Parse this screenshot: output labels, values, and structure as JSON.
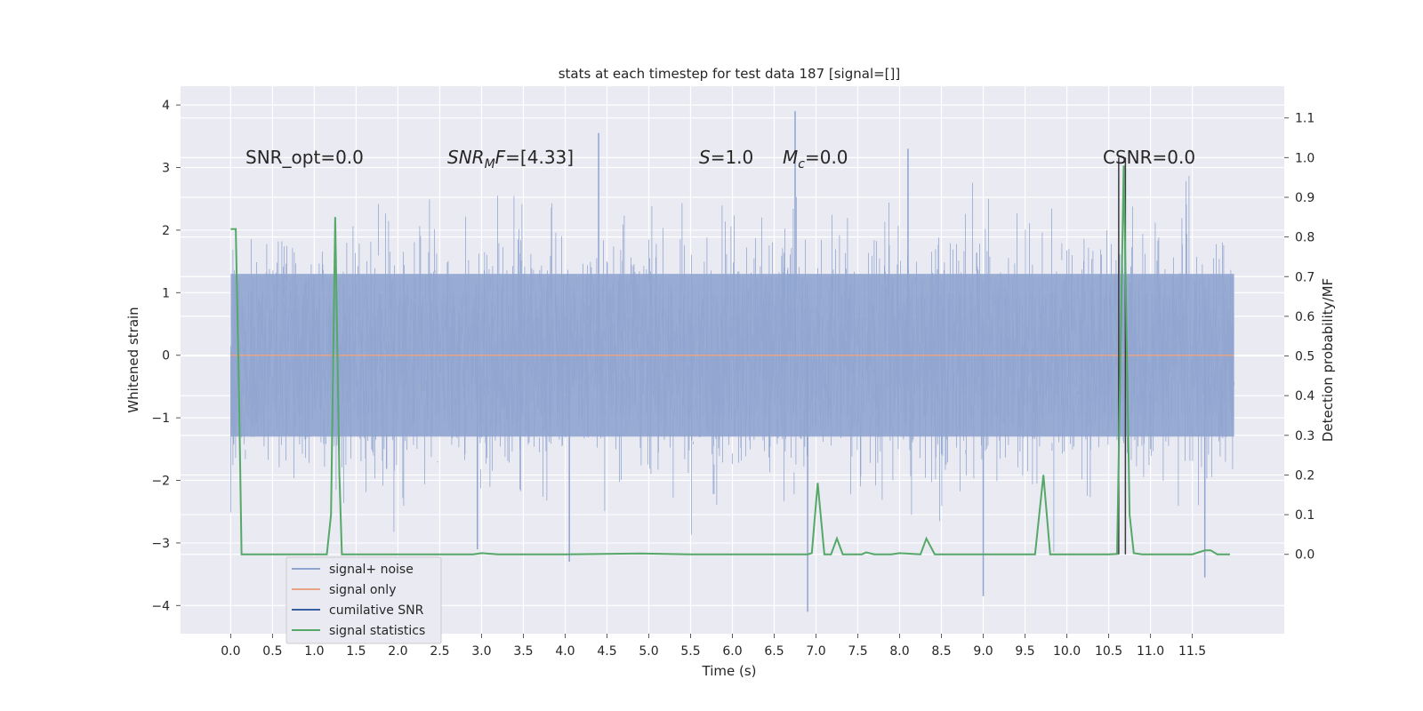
{
  "chart_data": {
    "type": "line",
    "title": "stats at each timestep for test data 187 [signal=[]]",
    "xlabel": "Time (s)",
    "ylabel": "Whitened strain",
    "ylabel_right": "Detection probability/MF",
    "xlim": [
      -0.6,
      12.6
    ],
    "ylim": [
      -4.45,
      4.3
    ],
    "ylim_right": [
      -0.2,
      1.18
    ],
    "x_ticks": [
      "0.0",
      "0.5",
      "1.0",
      "1.5",
      "2.0",
      "2.5",
      "3.0",
      "3.5",
      "4.0",
      "4.5",
      "5.0",
      "5.5",
      "6.0",
      "6.5",
      "7.0",
      "7.5",
      "8.0",
      "8.5",
      "9.0",
      "9.5",
      "10.0",
      "10.5",
      "11.0",
      "11.5"
    ],
    "y_ticks": [
      "4",
      "3",
      "2",
      "1",
      "0",
      "−1",
      "−2",
      "−3",
      "−4"
    ],
    "y_ticks_right": [
      "1.1",
      "1.0",
      "0.9",
      "0.8",
      "0.7",
      "0.6",
      "0.5",
      "0.4",
      "0.3",
      "0.2",
      "0.1",
      "0.0"
    ],
    "grid": true,
    "legend_position": "lower-left",
    "annotations": {
      "snr_opt": "SNR_opt=0.0",
      "snr_mf_sym": "SNR",
      "snr_mf_sub": "M",
      "snr_mf_rest": "F=[4.33]",
      "s_sym": "S",
      "s_rest": "=1.0",
      "mc_sym": "M",
      "mc_sub": "c",
      "mc_rest": "=0.0",
      "csnr": "CSNR=0.0"
    },
    "series": [
      {
        "name": "signal+ noise",
        "color": "#8fa4cf",
        "x_range": [
          0.0,
          12.0
        ],
        "typical_band": [
          -1.3,
          1.3
        ],
        "approx_extremes": [
          {
            "x": 4.4,
            "y": 3.55
          },
          {
            "x": 6.75,
            "y": 3.9
          },
          {
            "x": 6.9,
            "y": -4.1
          },
          {
            "x": 8.1,
            "y": 3.3
          },
          {
            "x": 9.0,
            "y": -3.85
          },
          {
            "x": 11.65,
            "y": -3.55
          },
          {
            "x": 4.05,
            "y": -3.3
          },
          {
            "x": 2.95,
            "y": -3.1
          }
        ]
      },
      {
        "name": "signal only",
        "color": "#e8a284",
        "points": [
          [
            0.0,
            0.0
          ],
          [
            12.0,
            0.0
          ]
        ]
      },
      {
        "name": "cumilative SNR",
        "color": "#3a5fa3",
        "points": []
      },
      {
        "name": "signal statistics",
        "color": "#55a868",
        "axis": "right",
        "points": [
          [
            0.0,
            0.82
          ],
          [
            0.06,
            0.82
          ],
          [
            0.1,
            0.4
          ],
          [
            0.13,
            0.0
          ],
          [
            0.2,
            0.0
          ],
          [
            0.5,
            0.0
          ],
          [
            1.0,
            0.0
          ],
          [
            1.15,
            0.0
          ],
          [
            1.2,
            0.1
          ],
          [
            1.25,
            0.85
          ],
          [
            1.3,
            0.2
          ],
          [
            1.33,
            0.0
          ],
          [
            2.0,
            0.0
          ],
          [
            2.9,
            0.0
          ],
          [
            3.0,
            0.003
          ],
          [
            3.2,
            0.0
          ],
          [
            4.0,
            0.0
          ],
          [
            4.9,
            0.002
          ],
          [
            5.5,
            0.0
          ],
          [
            6.0,
            0.0
          ],
          [
            6.5,
            0.0
          ],
          [
            6.9,
            0.0
          ],
          [
            6.95,
            0.003
          ],
          [
            7.02,
            0.18
          ],
          [
            7.1,
            0.0
          ],
          [
            7.18,
            0.0
          ],
          [
            7.25,
            0.04
          ],
          [
            7.32,
            0.0
          ],
          [
            7.55,
            0.0
          ],
          [
            7.6,
            0.005
          ],
          [
            7.7,
            0.0
          ],
          [
            7.9,
            0.0
          ],
          [
            8.0,
            0.003
          ],
          [
            8.25,
            0.0
          ],
          [
            8.32,
            0.04
          ],
          [
            8.42,
            0.0
          ],
          [
            9.0,
            0.0
          ],
          [
            9.5,
            0.0
          ],
          [
            9.62,
            0.0
          ],
          [
            9.72,
            0.2
          ],
          [
            9.8,
            0.0
          ],
          [
            10.5,
            0.0
          ],
          [
            10.6,
            0.001
          ],
          [
            10.68,
            0.98
          ],
          [
            10.75,
            0.1
          ],
          [
            10.8,
            0.003
          ],
          [
            10.9,
            0.0
          ],
          [
            11.3,
            0.0
          ],
          [
            11.5,
            0.0
          ],
          [
            11.65,
            0.01
          ],
          [
            11.72,
            0.01
          ],
          [
            11.8,
            0.0
          ],
          [
            11.95,
            0.0
          ]
        ]
      }
    ],
    "vertical_markers": [
      10.62,
      10.7
    ]
  }
}
